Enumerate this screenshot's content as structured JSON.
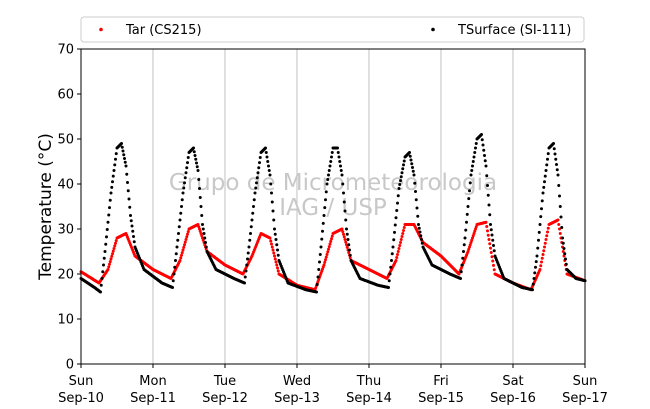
{
  "chart_data": {
    "type": "scatter",
    "ylabel": "Temperature (°C)",
    "ylim": [
      0,
      70
    ],
    "yticks": [
      0,
      10,
      20,
      30,
      40,
      50,
      60,
      70
    ],
    "xlim_days": [
      0,
      7
    ],
    "x_tick_labels": [
      {
        "day": "Sun",
        "date": "Sep-10"
      },
      {
        "day": "Mon",
        "date": "Sep-11"
      },
      {
        "day": "Tue",
        "date": "Sep-12"
      },
      {
        "day": "Wed",
        "date": "Sep-13"
      },
      {
        "day": "Thu",
        "date": "Sep-14"
      },
      {
        "day": "Fri",
        "date": "Sep-15"
      },
      {
        "day": "Sat",
        "date": "Sep-16"
      },
      {
        "day": "Sun",
        "date": "Sep-17"
      }
    ],
    "grid": "vertical",
    "legend_position": "top",
    "series": [
      {
        "name": "Tar (CS215)",
        "color": "#ff0000",
        "x": [
          "2017-09-10 00:00",
          "2017-09-10 06:00",
          "2017-09-10 09:00",
          "2017-09-10 12:00",
          "2017-09-10 15:00",
          "2017-09-10 18:00",
          "2017-09-11 00:00",
          "2017-09-11 06:00",
          "2017-09-11 09:00",
          "2017-09-11 12:00",
          "2017-09-11 15:00",
          "2017-09-11 18:00",
          "2017-09-12 00:00",
          "2017-09-12 06:00",
          "2017-09-12 09:00",
          "2017-09-12 12:00",
          "2017-09-12 15:00",
          "2017-09-12 18:00",
          "2017-09-13 00:00",
          "2017-09-13 06:00",
          "2017-09-13 09:00",
          "2017-09-13 12:00",
          "2017-09-13 15:00",
          "2017-09-13 18:00",
          "2017-09-14 00:00",
          "2017-09-14 06:00",
          "2017-09-14 09:00",
          "2017-09-14 12:00",
          "2017-09-14 15:00",
          "2017-09-14 18:00",
          "2017-09-15 00:00",
          "2017-09-15 06:00",
          "2017-09-15 09:00",
          "2017-09-15 12:00",
          "2017-09-15 15:00",
          "2017-09-15 18:00",
          "2017-09-16 00:00",
          "2017-09-16 06:00",
          "2017-09-16 09:00",
          "2017-09-16 12:00",
          "2017-09-16 15:00",
          "2017-09-16 18:00",
          "2017-09-17 00:00"
        ],
        "y": [
          20.5,
          18,
          21,
          28,
          29,
          24,
          21,
          19,
          23,
          30,
          31,
          25,
          22,
          20,
          24,
          29,
          28,
          20,
          17.5,
          16.5,
          22,
          29,
          30,
          23,
          21,
          19,
          23,
          31,
          31,
          27,
          24,
          20,
          25,
          31,
          31.5,
          20,
          18,
          16.5,
          21,
          31,
          32,
          20,
          18.5
        ]
      },
      {
        "name": "TSurface (SI-111)",
        "color": "#000000",
        "x": [
          "2017-09-10 00:00",
          "2017-09-10 04:30",
          "2017-09-10 06:30",
          "2017-09-10 08:00",
          "2017-09-10 10:00",
          "2017-09-10 12:00",
          "2017-09-10 13:30",
          "2017-09-10 15:00",
          "2017-09-10 16:30",
          "2017-09-10 18:00",
          "2017-09-10 21:00",
          "2017-09-11 03:00",
          "2017-09-11 06:30",
          "2017-09-11 08:00",
          "2017-09-11 10:00",
          "2017-09-11 12:00",
          "2017-09-11 13:30",
          "2017-09-11 15:00",
          "2017-09-11 16:30",
          "2017-09-11 18:00",
          "2017-09-11 21:00",
          "2017-09-12 03:00",
          "2017-09-12 06:30",
          "2017-09-12 08:00",
          "2017-09-12 10:00",
          "2017-09-12 12:00",
          "2017-09-12 13:30",
          "2017-09-12 15:00",
          "2017-09-12 16:30",
          "2017-09-12 18:00",
          "2017-09-12 21:00",
          "2017-09-13 03:00",
          "2017-09-13 06:30",
          "2017-09-13 08:00",
          "2017-09-13 10:00",
          "2017-09-13 12:00",
          "2017-09-13 13:30",
          "2017-09-13 15:00",
          "2017-09-13 16:30",
          "2017-09-13 18:00",
          "2017-09-13 21:00",
          "2017-09-14 03:00",
          "2017-09-14 06:30",
          "2017-09-14 08:00",
          "2017-09-14 10:00",
          "2017-09-14 12:00",
          "2017-09-14 13:30",
          "2017-09-14 15:00",
          "2017-09-14 16:30",
          "2017-09-14 18:00",
          "2017-09-14 21:00",
          "2017-09-15 03:00",
          "2017-09-15 06:30",
          "2017-09-15 08:00",
          "2017-09-15 10:00",
          "2017-09-15 12:00",
          "2017-09-15 13:30",
          "2017-09-15 15:00",
          "2017-09-15 16:30",
          "2017-09-15 18:00",
          "2017-09-15 21:00",
          "2017-09-16 03:00",
          "2017-09-16 06:30",
          "2017-09-16 08:00",
          "2017-09-16 10:00",
          "2017-09-16 12:00",
          "2017-09-16 13:30",
          "2017-09-16 15:00",
          "2017-09-16 16:30",
          "2017-09-16 18:00",
          "2017-09-16 21:00",
          "2017-09-17 00:00"
        ],
        "y": [
          19,
          17,
          16,
          25,
          38,
          48,
          49,
          44,
          33,
          26,
          21,
          18,
          17,
          26,
          38,
          47,
          48,
          43,
          31,
          25,
          21,
          19,
          18,
          26,
          38,
          47,
          48,
          42,
          30,
          23,
          18,
          16.5,
          16,
          26,
          40,
          48,
          48,
          42,
          30,
          23,
          19,
          17.5,
          17,
          26,
          39,
          46,
          47,
          42,
          31,
          26,
          22,
          20,
          19,
          28,
          42,
          50,
          51,
          44,
          31,
          24,
          19,
          17,
          16.5,
          24,
          38,
          48,
          49,
          42,
          28,
          21,
          19,
          18.5
        ]
      }
    ],
    "annotations": [
      "Grupo de Micrometeorologia",
      "IAG / USP"
    ]
  }
}
